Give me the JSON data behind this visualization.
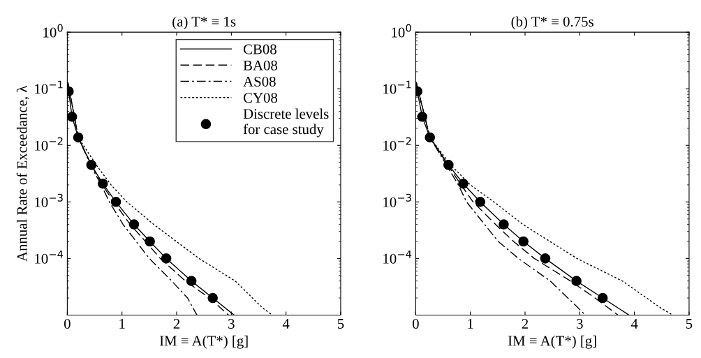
{
  "chart_data": [
    {
      "type": "line",
      "title": "(a) T* ≡ 1s",
      "xlabel": "IM ≡ A(T*) [g]",
      "ylabel": "Annual Rate of Exceedance, λ",
      "log": "y",
      "xlim": [
        0,
        5
      ],
      "ylim": [
        1e-05,
        1
      ],
      "xticks": [
        0,
        1,
        2,
        3,
        4,
        5
      ],
      "yticks": [
        {
          "value": 1,
          "label": "10$^{0}$"
        },
        {
          "value": 0.1,
          "label": "10$^{−1}$"
        },
        {
          "value": 0.01,
          "label": "10$^{−2}$"
        },
        {
          "value": 0.001,
          "label": "10$^{−3}$"
        },
        {
          "value": 0.0001,
          "label": "10$^{−4}$"
        }
      ],
      "grid": false,
      "legend": "top right",
      "series": [
        {
          "name": "CB08",
          "color": "#000000",
          "line_style": "solid",
          "x": [
            0.01,
            0.025,
            0.087,
            0.2,
            0.44,
            0.65,
            0.89,
            1.22,
            1.51,
            1.81,
            2.27,
            2.66,
            3.05
          ],
          "values": [
            0.13,
            0.09,
            0.032,
            0.0138,
            0.0045,
            0.0021,
            0.001,
            0.0004,
            0.0002,
            0.0001,
            4e-05,
            2e-05,
            1e-05
          ]
        },
        {
          "name": "BA08",
          "color": "#000000",
          "line_style": "dashed",
          "x": [
            0.01,
            0.2,
            0.44,
            0.64,
            0.85,
            1.15,
            1.43,
            1.7,
            2.16,
            2.6,
            2.95
          ],
          "values": [
            0.13,
            0.0138,
            0.0045,
            0.002,
            0.001,
            0.0004,
            0.0002,
            0.0001,
            4e-05,
            2e-05,
            1e-05
          ]
        },
        {
          "name": "AS08",
          "color": "#000000",
          "line_style": "dashdot",
          "x": [
            0.01,
            0.2,
            0.44,
            0.62,
            0.77,
            1.02,
            1.5,
            1.91,
            2.2,
            2.37
          ],
          "values": [
            0.13,
            0.0138,
            0.0042,
            0.002,
            0.001,
            0.0004,
            0.0001,
            4e-05,
            2e-05,
            1e-05
          ]
        },
        {
          "name": "CY08",
          "color": "#000000",
          "line_style": "dotted",
          "x": [
            0.01,
            0.2,
            0.53,
            0.8,
            1.09,
            1.58,
            2.41,
            3.07,
            3.57,
            3.75
          ],
          "values": [
            0.13,
            0.0138,
            0.0045,
            0.002,
            0.001,
            0.0004,
            0.0001,
            4e-05,
            1.34e-05,
            1e-05
          ]
        },
        {
          "name": "Discrete levels\nfor case study",
          "type": "scatter",
          "marker": "circle",
          "color": "#000000",
          "x": [
            0.025,
            0.087,
            0.2,
            0.44,
            0.65,
            0.89,
            1.22,
            1.51,
            1.81,
            2.27,
            2.66
          ],
          "values": [
            0.09,
            0.032,
            0.0138,
            0.0045,
            0.0021,
            0.001,
            0.0004,
            0.0002,
            0.0001,
            4e-05,
            2e-05
          ]
        }
      ]
    },
    {
      "type": "line",
      "title": "(b) T* ≡ 0.75s",
      "xlabel": "IM ≡ A(T*) [g]",
      "log": "y",
      "xlim": [
        0,
        5
      ],
      "ylim": [
        1e-05,
        1
      ],
      "xticks": [
        0,
        1,
        2,
        3,
        4,
        5
      ],
      "yticks": [
        {
          "value": 1,
          "label": "10$^{0}$"
        },
        {
          "value": 0.1,
          "label": "10$^{−1}$"
        },
        {
          "value": 0.01,
          "label": "10$^{−2}$"
        },
        {
          "value": 0.001,
          "label": "10$^{−3}$"
        },
        {
          "value": 0.0001,
          "label": "10$^{−4}$"
        }
      ],
      "grid": false,
      "series": [
        {
          "color": "#000000",
          "line_style": "solid",
          "x": [
            0.01,
            0.03,
            0.12,
            0.26,
            0.6,
            0.87,
            1.18,
            1.61,
            1.97,
            2.37,
            2.94,
            3.42,
            3.9
          ],
          "values": [
            0.13,
            0.09,
            0.032,
            0.0138,
            0.0045,
            0.0021,
            0.001,
            0.0004,
            0.0002,
            0.0001,
            4e-05,
            2e-05,
            1e-05
          ]
        },
        {
          "color": "#000000",
          "line_style": "dashed",
          "x": [
            0.01,
            0.26,
            0.6,
            0.83,
            1.05,
            1.46,
            1.79,
            2.17,
            2.83,
            3.28,
            3.7
          ],
          "values": [
            0.13,
            0.0138,
            0.0043,
            0.002,
            0.001,
            0.0004,
            0.0002,
            0.0001,
            4e-05,
            2e-05,
            1e-05
          ]
        },
        {
          "color": "#000000",
          "line_style": "dashdot",
          "x": [
            0.01,
            0.26,
            0.58,
            0.78,
            0.93,
            1.26,
            1.51,
            1.88,
            2.46,
            2.95,
            3.1
          ],
          "values": [
            0.13,
            0.0138,
            0.0042,
            0.002,
            0.001,
            0.0004,
            0.0002,
            0.0001,
            4e-05,
            1.4e-05,
            1e-05
          ]
        },
        {
          "color": "#000000",
          "line_style": "dotted",
          "x": [
            0.01,
            0.26,
            0.64,
            1.0,
            1.43,
            1.96,
            2.95,
            3.78,
            4.48,
            4.7
          ],
          "values": [
            0.13,
            0.0138,
            0.0045,
            0.002,
            0.001,
            0.0004,
            0.0001,
            4e-05,
            1.34e-05,
            1e-05
          ]
        },
        {
          "type": "scatter",
          "marker": "circle",
          "color": "#000000",
          "x": [
            0.03,
            0.12,
            0.26,
            0.6,
            0.87,
            1.18,
            1.61,
            1.97,
            2.37,
            2.94,
            3.42
          ],
          "values": [
            0.09,
            0.032,
            0.0138,
            0.0045,
            0.0021,
            0.001,
            0.0004,
            0.0002,
            0.0001,
            4e-05,
            2e-05
          ]
        }
      ]
    }
  ]
}
